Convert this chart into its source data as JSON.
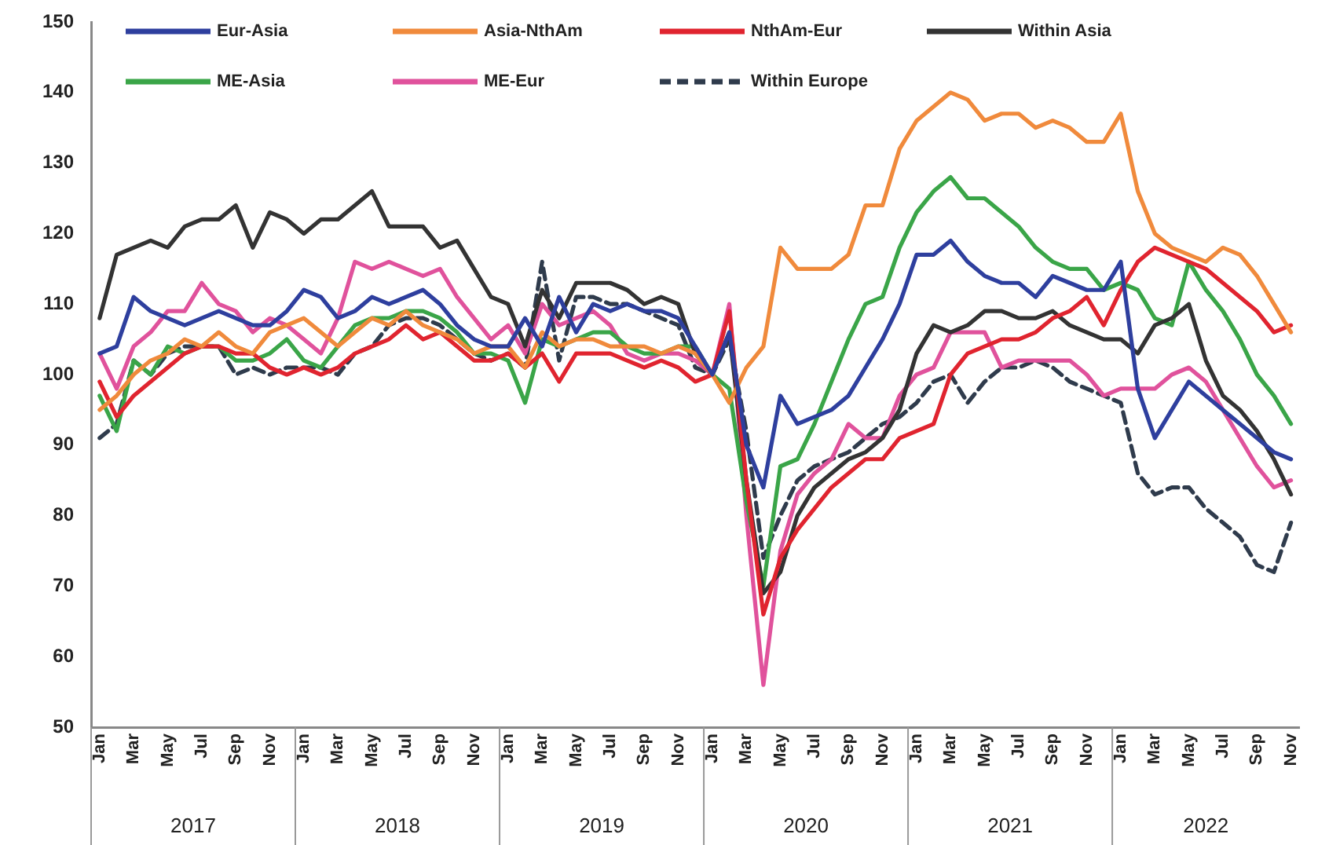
{
  "chart_data": {
    "type": "line",
    "categories": [
      "Jan",
      null,
      "Mar",
      null,
      "May",
      null,
      "Jul",
      null,
      "Sep",
      null,
      "Nov",
      null,
      "Jan",
      null,
      "Mar",
      null,
      "May",
      null,
      "Jul",
      null,
      "Sep",
      null,
      "Nov",
      null,
      "Jan",
      null,
      "Mar",
      null,
      "May",
      null,
      "Jul",
      null,
      "Sep",
      null,
      "Nov",
      null,
      "Jan",
      null,
      "Mar",
      null,
      "May",
      null,
      "Jul",
      null,
      "Sep",
      null,
      "Nov",
      null,
      "Jan",
      null,
      "Mar",
      null,
      "May",
      null,
      "Jul",
      null,
      "Sep",
      null,
      "Nov",
      null,
      "Jan",
      null,
      "Mar",
      null,
      "May",
      null,
      "Jul",
      null,
      "Sep",
      null,
      "Nov"
    ],
    "series": [
      {
        "name": "Eur-Asia",
        "color": "#2e3f9e",
        "values": [
          103,
          104,
          111,
          109,
          108,
          107,
          108,
          109,
          108,
          107,
          107,
          109,
          112,
          111,
          108,
          109,
          111,
          110,
          111,
          112,
          110,
          107,
          105,
          104,
          104,
          108,
          104,
          111,
          106,
          110,
          109,
          110,
          109,
          109,
          108,
          104,
          100,
          106,
          90,
          84,
          97,
          93,
          94,
          95,
          97,
          101,
          105,
          110,
          117,
          117,
          119,
          116,
          114,
          113,
          113,
          111,
          114,
          113,
          112,
          112,
          116,
          98,
          91,
          95,
          99,
          97,
          95,
          93,
          91,
          89,
          88
        ]
      },
      {
        "name": "Asia-NthAm",
        "color": "#f08a3c",
        "values": [
          95,
          97,
          100,
          102,
          103,
          105,
          104,
          106,
          104,
          103,
          106,
          107,
          108,
          106,
          104,
          106,
          108,
          107,
          109,
          107,
          106,
          105,
          103,
          104,
          104,
          101,
          106,
          104,
          105,
          105,
          104,
          104,
          104,
          103,
          104,
          103,
          100,
          96,
          101,
          104,
          118,
          115,
          115,
          115,
          117,
          124,
          124,
          132,
          136,
          138,
          140,
          139,
          136,
          137,
          137,
          135,
          136,
          135,
          133,
          133,
          137,
          126,
          120,
          118,
          117,
          116,
          118,
          117,
          114,
          110,
          106
        ]
      },
      {
        "name": "NthAm-Eur",
        "color": "#e0242f",
        "values": [
          99,
          94,
          97,
          99,
          101,
          103,
          104,
          104,
          103,
          103,
          101,
          100,
          101,
          100,
          101,
          103,
          104,
          105,
          107,
          105,
          106,
          104,
          102,
          102,
          103,
          101,
          103,
          99,
          103,
          103,
          103,
          102,
          101,
          102,
          101,
          99,
          100,
          109,
          85,
          66,
          74,
          78,
          81,
          84,
          86,
          88,
          88,
          91,
          92,
          93,
          100,
          103,
          104,
          105,
          105,
          106,
          108,
          109,
          111,
          107,
          112,
          116,
          118,
          117,
          116,
          115,
          113,
          111,
          109,
          106,
          107
        ]
      },
      {
        "name": "Within Asia",
        "color": "#333333",
        "values": [
          108,
          117,
          118,
          119,
          118,
          121,
          122,
          122,
          124,
          118,
          123,
          122,
          120,
          122,
          122,
          124,
          126,
          121,
          121,
          121,
          118,
          119,
          115,
          111,
          110,
          104,
          112,
          108,
          113,
          113,
          113,
          112,
          110,
          111,
          110,
          103,
          100,
          106,
          85,
          69,
          72,
          80,
          84,
          86,
          88,
          89,
          91,
          95,
          103,
          107,
          106,
          107,
          109,
          109,
          108,
          108,
          109,
          107,
          106,
          105,
          105,
          103,
          107,
          108,
          110,
          102,
          97,
          95,
          92,
          88,
          83
        ]
      },
      {
        "name": "ME-Asia",
        "color": "#3aa548",
        "values": [
          97,
          92,
          102,
          100,
          104,
          103,
          104,
          104,
          102,
          102,
          103,
          105,
          102,
          101,
          104,
          107,
          108,
          108,
          109,
          109,
          108,
          106,
          103,
          103,
          102,
          96,
          105,
          104,
          105,
          106,
          106,
          104,
          103,
          103,
          104,
          104,
          100,
          98,
          82,
          70,
          87,
          88,
          93,
          99,
          105,
          110,
          111,
          118,
          123,
          126,
          128,
          125,
          125,
          123,
          121,
          118,
          116,
          115,
          115,
          112,
          113,
          112,
          108,
          107,
          116,
          112,
          109,
          105,
          100,
          97,
          93
        ]
      },
      {
        "name": "ME-Eur",
        "color": "#e0529c",
        "values": [
          103,
          98,
          104,
          106,
          109,
          109,
          113,
          110,
          109,
          106,
          108,
          107,
          105,
          103,
          108,
          116,
          115,
          116,
          115,
          114,
          115,
          111,
          108,
          105,
          107,
          103,
          110,
          107,
          108,
          109,
          107,
          103,
          102,
          103,
          103,
          102,
          100,
          110,
          80,
          56,
          75,
          83,
          86,
          88,
          93,
          91,
          91,
          97,
          100,
          101,
          106,
          106,
          106,
          101,
          102,
          102,
          102,
          102,
          100,
          97,
          98,
          98,
          98,
          100,
          101,
          99,
          95,
          91,
          87,
          84,
          85
        ]
      },
      {
        "name": "Within Europe",
        "color": "#2f3b4c",
        "line_style": "dashed",
        "values": [
          91,
          93,
          102,
          100,
          103,
          104,
          104,
          104,
          100,
          101,
          100,
          101,
          101,
          101,
          100,
          103,
          104,
          107,
          108,
          108,
          107,
          105,
          103,
          102,
          103,
          101,
          116,
          102,
          111,
          111,
          110,
          110,
          109,
          108,
          107,
          101,
          100,
          105,
          92,
          74,
          80,
          85,
          87,
          88,
          89,
          91,
          93,
          94,
          96,
          99,
          100,
          96,
          99,
          101,
          101,
          102,
          101,
          99,
          98,
          97,
          96,
          86,
          83,
          84,
          84,
          81,
          79,
          77,
          73,
          72,
          79
        ]
      }
    ],
    "ylim": [
      50,
      150
    ],
    "yticks": [
      50,
      60,
      70,
      80,
      90,
      100,
      110,
      120,
      130,
      140,
      150
    ],
    "grid": false,
    "legend": "top",
    "marker": "none",
    "line_style": "solid",
    "annotations": [
      "2017",
      "2018",
      "2019",
      "2020",
      "2021",
      "2022"
    ]
  }
}
